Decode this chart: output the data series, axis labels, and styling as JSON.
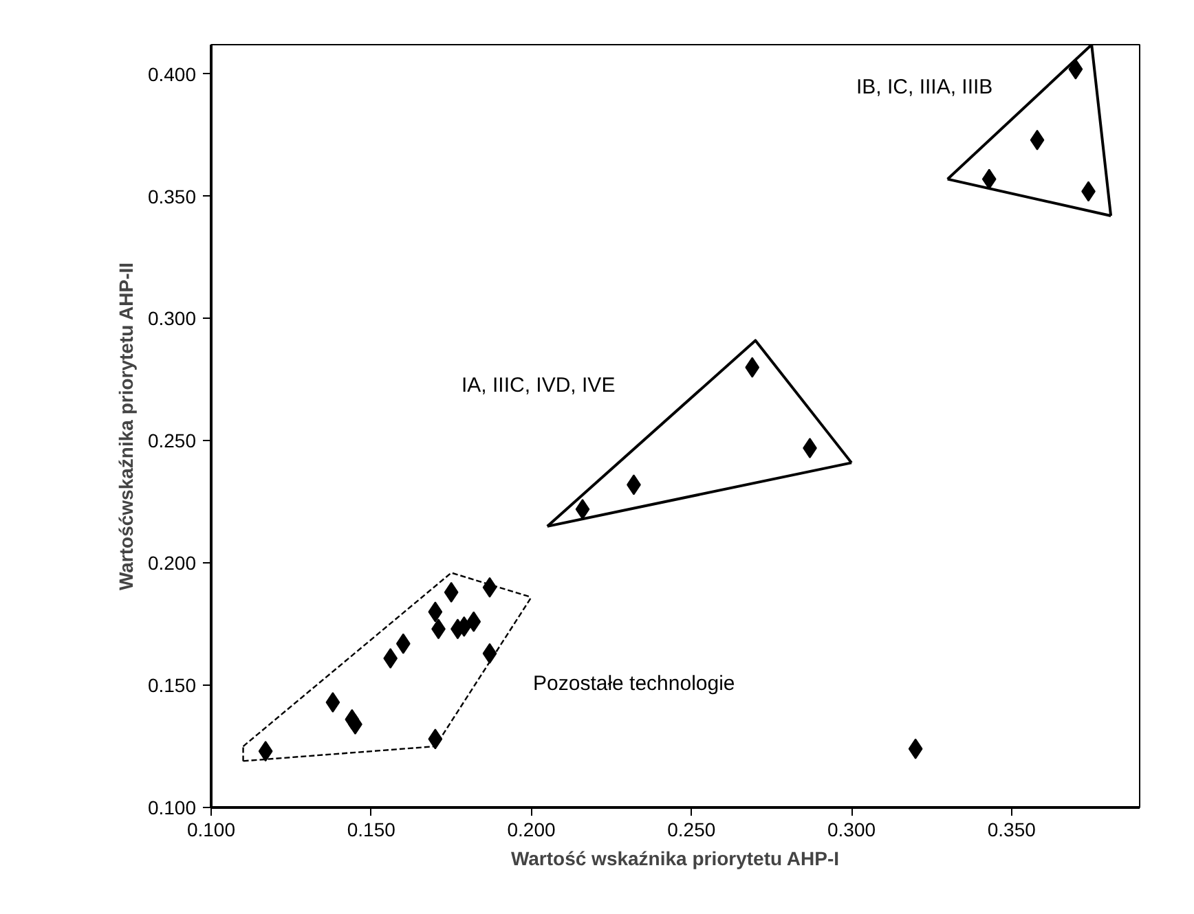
{
  "chart_data": {
    "type": "scatter",
    "xlabel": "Wartość wskaźnika priorytetu AHP-I",
    "ylabel": "Wartośćwskaźnika priorytetu AHP-II",
    "xlim": [
      0.1,
      0.39
    ],
    "ylim": [
      0.1,
      0.412
    ],
    "xticks": [
      {
        "value": 0.1,
        "label": "0.100"
      },
      {
        "value": 0.15,
        "label": "0.150"
      },
      {
        "value": 0.2,
        "label": "0.200"
      },
      {
        "value": 0.25,
        "label": "0.250"
      },
      {
        "value": 0.3,
        "label": "0.300"
      },
      {
        "value": 0.35,
        "label": "0.350"
      }
    ],
    "yticks": [
      {
        "value": 0.1,
        "label": "0.100"
      },
      {
        "value": 0.15,
        "label": "0.150"
      },
      {
        "value": 0.2,
        "label": "0.200"
      },
      {
        "value": 0.25,
        "label": "0.250"
      },
      {
        "value": 0.3,
        "label": "0.300"
      },
      {
        "value": 0.35,
        "label": "0.350"
      },
      {
        "value": 0.4,
        "label": "0.400"
      }
    ],
    "grid": false,
    "series": [
      {
        "color": "#000000",
        "marker": "diamond",
        "x": [
          0.117,
          0.138,
          0.144,
          0.145,
          0.156,
          0.16,
          0.17,
          0.17,
          0.171,
          0.175,
          0.177,
          0.179,
          0.182,
          0.187,
          0.187,
          0.216,
          0.232,
          0.269,
          0.287,
          0.343,
          0.358,
          0.37,
          0.374,
          0.32
        ],
        "values": [
          0.123,
          0.143,
          0.136,
          0.134,
          0.161,
          0.167,
          0.128,
          0.18,
          0.173,
          0.188,
          0.173,
          0.174,
          0.176,
          0.19,
          0.163,
          0.222,
          0.232,
          0.28,
          0.247,
          0.357,
          0.373,
          0.402,
          0.352,
          0.124
        ]
      },
      {
        "type": "line",
        "color": "#000000",
        "marker": "none",
        "line_style": "dashed",
        "x": [
          0.11,
          0.175,
          0.2
        ],
        "values": [
          0.125,
          0.196,
          0.186
        ]
      },
      {
        "type": "line",
        "color": "#000000",
        "marker": "none",
        "line_style": "dashed",
        "x": [
          0.11,
          0.17,
          0.2
        ],
        "values": [
          0.119,
          0.125,
          0.186
        ]
      },
      {
        "type": "line",
        "color": "#000000",
        "marker": "none",
        "line_style": "dashed",
        "x": [
          0.11,
          0.11
        ],
        "values": [
          0.119,
          0.125
        ]
      },
      {
        "type": "line",
        "color": "#000000",
        "marker": "none",
        "line_style": "solid",
        "x": [
          0.205,
          0.27,
          0.3
        ],
        "values": [
          0.215,
          0.291,
          0.241
        ]
      },
      {
        "type": "line",
        "color": "#000000",
        "marker": "none",
        "line_style": "solid",
        "x": [
          0.205,
          0.3
        ],
        "values": [
          0.215,
          0.241
        ]
      },
      {
        "type": "line",
        "color": "#000000",
        "marker": "none",
        "line_style": "solid",
        "x": [
          0.33,
          0.375,
          0.381
        ],
        "values": [
          0.357,
          0.412,
          0.342
        ]
      },
      {
        "type": "line",
        "color": "#000000",
        "marker": "none",
        "line_style": "solid",
        "x": [
          0.33,
          0.381
        ],
        "values": [
          0.357,
          0.342
        ]
      }
    ],
    "annotations": [
      "IB, IC, IIIA, IIIB",
      "IA, IIIC, IVD, IVE",
      "Pozostałe technologie"
    ]
  }
}
